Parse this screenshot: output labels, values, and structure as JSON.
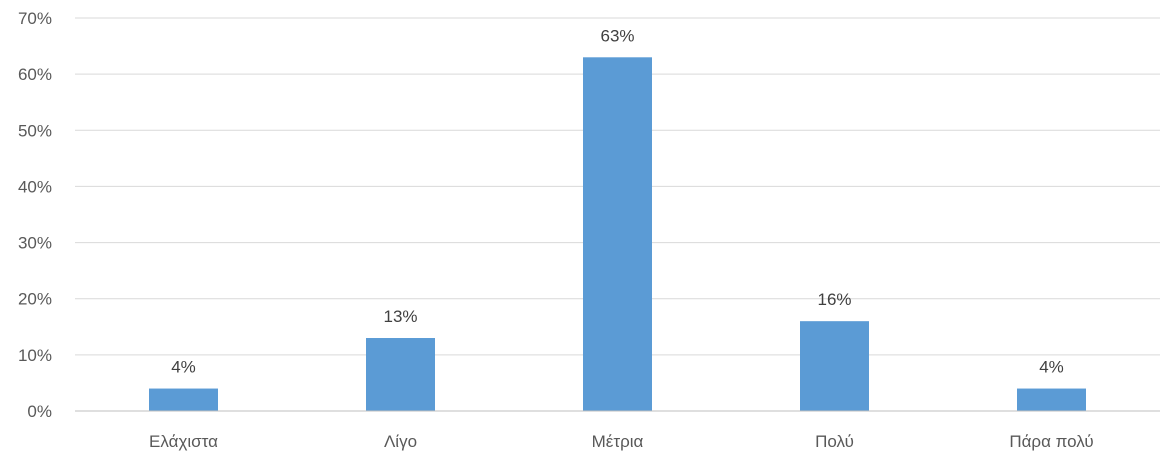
{
  "chart_data": {
    "type": "bar",
    "title": "",
    "xlabel": "",
    "ylabel": "",
    "categories": [
      "Ελάχιστα",
      "Λίγο",
      "Μέτρια",
      "Πολύ",
      "Πάρα πολύ"
    ],
    "values": [
      4,
      13,
      63,
      16,
      4
    ],
    "data_labels": [
      "4%",
      "13%",
      "63%",
      "16%",
      "4%"
    ],
    "ylim": [
      0,
      70
    ],
    "yticks": [
      0,
      10,
      20,
      30,
      40,
      50,
      60,
      70
    ],
    "ytick_labels": [
      "0%",
      "10%",
      "20%",
      "30%",
      "40%",
      "50%",
      "60%",
      "70%"
    ],
    "grid": true,
    "legend": "none",
    "bar_color": "#5b9bd5"
  }
}
